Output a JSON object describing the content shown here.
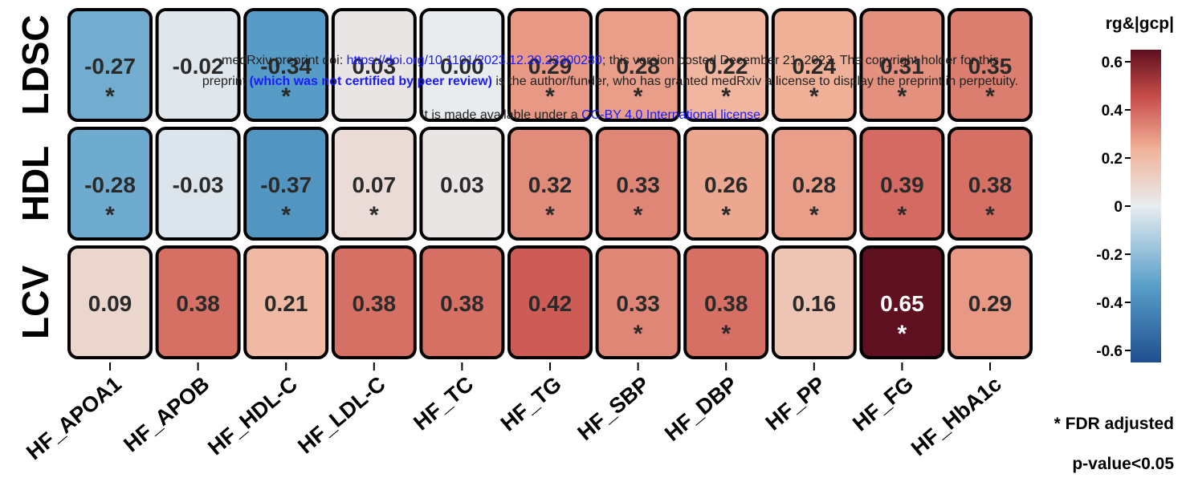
{
  "chart_data": {
    "type": "heatmap",
    "rows": [
      "LDSC",
      "HDL",
      "LCV"
    ],
    "columns": [
      "HF_APOA1",
      "HF_APOB",
      "HF_HDL-C",
      "HF_LDL-C",
      "HF_TC",
      "HF_TG",
      "HF_SBP",
      "HF_DBP",
      "HF_PP",
      "HF_FG",
      "HF_HbA1c"
    ],
    "values": [
      [
        -0.27,
        -0.02,
        -0.34,
        0.03,
        0.0,
        0.29,
        0.28,
        0.22,
        0.24,
        0.31,
        0.35
      ],
      [
        -0.28,
        -0.03,
        -0.37,
        0.07,
        0.03,
        0.32,
        0.33,
        0.26,
        0.28,
        0.39,
        0.38
      ],
      [
        0.09,
        0.38,
        0.21,
        0.38,
        0.38,
        0.42,
        0.33,
        0.38,
        0.16,
        0.65,
        0.29
      ]
    ],
    "labels": [
      [
        "-0.27",
        "-0.02",
        "-0.34",
        "0.03",
        "0.00",
        "0.29",
        "0.28",
        "0.22",
        "0.24",
        "0.31",
        "0.35"
      ],
      [
        "-0.28",
        "-0.03",
        "-0.37",
        "0.07",
        "0.03",
        "0.32",
        "0.33",
        "0.26",
        "0.28",
        "0.39",
        "0.38"
      ],
      [
        "0.09",
        "0.38",
        "0.21",
        "0.38",
        "0.38",
        "0.42",
        "0.33",
        "0.38",
        "0.16",
        "0.65",
        "0.29"
      ]
    ],
    "significant": [
      [
        true,
        false,
        true,
        false,
        false,
        true,
        true,
        true,
        true,
        true,
        true
      ],
      [
        true,
        false,
        true,
        true,
        false,
        true,
        true,
        true,
        true,
        true,
        true
      ],
      [
        false,
        false,
        false,
        false,
        false,
        false,
        true,
        true,
        false,
        true,
        false
      ]
    ],
    "significance_marker": "*",
    "colorbar": {
      "title": "rg&|gcp|",
      "range": [
        -0.65,
        0.65
      ],
      "ticks": [
        0.6,
        0.4,
        0.2,
        0,
        -0.2,
        -0.4,
        -0.6
      ],
      "tick_labels": [
        "0.6",
        "0.4",
        "0.2",
        "0",
        "-0.2",
        "-0.4",
        "-0.6"
      ],
      "colors": {
        "low": "#1f4f8f",
        "mid_low": "#5aa0c9",
        "mid": "#e8ecef",
        "mid_high": "#f1b39a",
        "high": "#c84c49",
        "max": "#5e0f20"
      }
    },
    "legend_note": {
      "line1": "* FDR adjusted",
      "line2": "p-value<0.05"
    }
  },
  "watermark": {
    "line1_a": "medRxiv preprint doi: ",
    "line1_link": "https://doi.org/10.1101/2023.12.20.23300280",
    "line1_b": "; this version posted December 21, 2023. The copyright holder for this",
    "line2_a": "preprint ",
    "line2_bold": "(which was not certified by peer review)",
    "line2_b": " is the author/funder, who has granted medRxiv a license to display the preprint in perpetuity.",
    "line3_a": "It is made available under a ",
    "line3_link": "CC-BY 4.0 International license",
    "line3_b": " ."
  }
}
